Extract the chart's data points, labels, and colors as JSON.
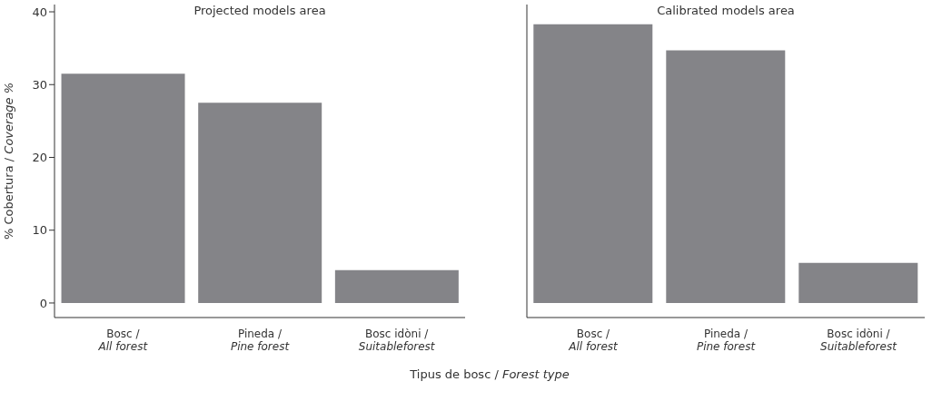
{
  "chart_data": [
    {
      "type": "bar",
      "title": "Projected models area",
      "xlabel": "Tipus de bosc / Forest type",
      "ylabel": "% Cobertura / Coverage %",
      "categories": [
        "Bosc /\nAll forest",
        "Pineda /\nPine forest",
        "Bosc idòni /\nSuitableforest"
      ],
      "values": [
        31.5,
        27.5,
        4.5
      ],
      "color": "#848488",
      "ylim": [
        -2,
        41
      ],
      "yticks": [
        0,
        10,
        20,
        30,
        40
      ],
      "grid": false
    },
    {
      "type": "bar",
      "title": "Calibrated models area",
      "categories": [
        "Bosc /\nAll forest",
        "Pineda /\nPine forest",
        "Bosc idòni /\nSuitableforest"
      ],
      "values": [
        38.3,
        34.7,
        5.5
      ],
      "color": "#848488",
      "ylim": [
        -2,
        41
      ],
      "yticks": [
        0,
        10,
        20,
        30,
        40
      ],
      "grid": false,
      "tick_labels": "x"
    }
  ]
}
